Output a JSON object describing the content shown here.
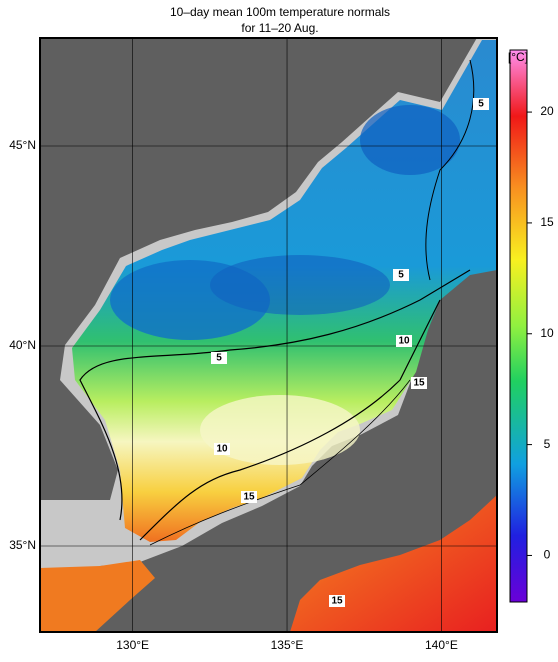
{
  "title": [
    "10–day mean 100m temperature normals",
    "for 11–20 Aug."
  ],
  "map": {
    "lon_range": [
      127,
      141.8
    ],
    "lat_range": [
      32.85,
      47.7
    ],
    "lon_ticks": [
      {
        "value": 130,
        "label": "130°E"
      },
      {
        "value": 135,
        "label": "135°E"
      },
      {
        "value": 140,
        "label": "140°E"
      }
    ],
    "lat_ticks": [
      {
        "value": 45,
        "label": "45°N"
      },
      {
        "value": 40,
        "label": "40°N"
      },
      {
        "value": 35,
        "label": "35°N"
      }
    ]
  },
  "colorbar": {
    "unit": "[°C]",
    "range": [
      -2.1,
      22.8
    ],
    "ticks": [
      0,
      5,
      10,
      15,
      20
    ]
  },
  "contour_labels": [
    5,
    5,
    10,
    5,
    15,
    10,
    15,
    15
  ]
}
